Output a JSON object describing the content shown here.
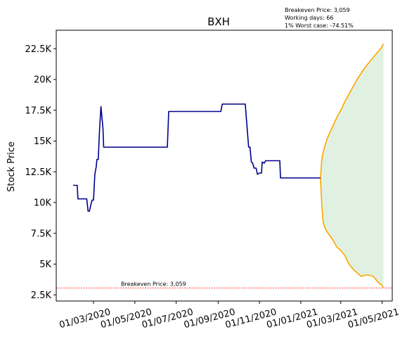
{
  "chart_data": {
    "type": "line",
    "title": "BXH",
    "ylabel": "Stock Price",
    "xlabel": "",
    "annotation_lines": [
      "Breakeven Price: 3,059",
      "Working days: 66",
      "1% Worst case: -74.51%"
    ],
    "ylim": [
      2000,
      24000
    ],
    "y_ticks": [
      2500,
      5000,
      7500,
      10000,
      12500,
      15000,
      17500,
      20000,
      22500
    ],
    "y_tick_labels": [
      "2.5K",
      "5K",
      "7.5K",
      "10K",
      "12.5K",
      "15K",
      "17.5K",
      "20K",
      "22.5K"
    ],
    "xlim": [
      "2020-01-06",
      "2021-05-16"
    ],
    "x_ticks": [
      "2020-03-01",
      "2020-05-01",
      "2020-07-01",
      "2020-09-01",
      "2020-11-01",
      "2021-01-01",
      "2021-03-01",
      "2021-05-01"
    ],
    "x_tick_labels": [
      "01/03/2020",
      "01/05/2020",
      "01/07/2020",
      "01/09/2020",
      "01/11/2020",
      "01/01/2021",
      "01/03/2021",
      "01/05/2021"
    ],
    "breakeven": {
      "value": 3059,
      "label": "Breakeven Price: 3,059",
      "color": "#ff0000"
    },
    "band": {
      "color": "#c8e6c9"
    },
    "series": [
      {
        "role": "history",
        "color": "#00008b",
        "points": [
          [
            "2020-01-31",
            11400
          ],
          [
            "2020-02-06",
            11400
          ],
          [
            "2020-02-07",
            10300
          ],
          [
            "2020-02-20",
            10300
          ],
          [
            "2020-02-22",
            9300
          ],
          [
            "2020-02-24",
            9300
          ],
          [
            "2020-02-26",
            9800
          ],
          [
            "2020-02-28",
            10200
          ],
          [
            "2020-03-01",
            10200
          ],
          [
            "2020-03-03",
            12300
          ],
          [
            "2020-03-05",
            12900
          ],
          [
            "2020-03-06",
            13500
          ],
          [
            "2020-03-08",
            13500
          ],
          [
            "2020-03-10",
            16000
          ],
          [
            "2020-03-12",
            17800
          ],
          [
            "2020-03-14",
            16600
          ],
          [
            "2020-03-15",
            16000
          ],
          [
            "2020-03-16",
            14500
          ],
          [
            "2020-06-18",
            14500
          ],
          [
            "2020-06-20",
            17400
          ],
          [
            "2020-09-05",
            17400
          ],
          [
            "2020-09-07",
            18000
          ],
          [
            "2020-10-11",
            18000
          ],
          [
            "2020-10-16",
            14500
          ],
          [
            "2020-10-18",
            14500
          ],
          [
            "2020-10-20",
            13300
          ],
          [
            "2020-10-22",
            13200
          ],
          [
            "2020-10-24",
            12800
          ],
          [
            "2020-10-27",
            12800
          ],
          [
            "2020-10-29",
            12300
          ],
          [
            "2020-11-01",
            12400
          ],
          [
            "2020-11-04",
            12400
          ],
          [
            "2020-11-05",
            13300
          ],
          [
            "2020-11-08",
            13200
          ],
          [
            "2020-11-10",
            13400
          ],
          [
            "2020-12-01",
            13400
          ],
          [
            "2020-12-02",
            12000
          ],
          [
            "2021-01-30",
            12000
          ]
        ]
      },
      {
        "role": "upper-bound",
        "color": "#ffa500",
        "points": [
          [
            "2021-01-30",
            12000
          ],
          [
            "2021-02-01",
            13500
          ],
          [
            "2021-02-03",
            14100
          ],
          [
            "2021-02-06",
            14700
          ],
          [
            "2021-02-09",
            15200
          ],
          [
            "2021-02-13",
            15700
          ],
          [
            "2021-02-18",
            16300
          ],
          [
            "2021-02-23",
            16900
          ],
          [
            "2021-03-01",
            17500
          ],
          [
            "2021-03-07",
            18200
          ],
          [
            "2021-03-13",
            18800
          ],
          [
            "2021-03-19",
            19400
          ],
          [
            "2021-03-25",
            20000
          ],
          [
            "2021-03-31",
            20500
          ],
          [
            "2021-04-06",
            21000
          ],
          [
            "2021-04-12",
            21400
          ],
          [
            "2021-04-18",
            21800
          ],
          [
            "2021-04-24",
            22200
          ],
          [
            "2021-04-30",
            22600
          ],
          [
            "2021-05-03",
            22900
          ]
        ]
      },
      {
        "role": "lower-bound",
        "color": "#ffa500",
        "points": [
          [
            "2021-01-30",
            12000
          ],
          [
            "2021-02-01",
            9800
          ],
          [
            "2021-02-03",
            8400
          ],
          [
            "2021-02-06",
            7900
          ],
          [
            "2021-02-09",
            7600
          ],
          [
            "2021-02-13",
            7300
          ],
          [
            "2021-02-18",
            6900
          ],
          [
            "2021-02-23",
            6400
          ],
          [
            "2021-03-01",
            6100
          ],
          [
            "2021-03-07",
            5700
          ],
          [
            "2021-03-13",
            5000
          ],
          [
            "2021-03-19",
            4600
          ],
          [
            "2021-03-25",
            4300
          ],
          [
            "2021-03-31",
            4000
          ],
          [
            "2021-04-06",
            4100
          ],
          [
            "2021-04-12",
            4100
          ],
          [
            "2021-04-18",
            4000
          ],
          [
            "2021-04-24",
            3600
          ],
          [
            "2021-04-30",
            3300
          ],
          [
            "2021-05-03",
            3100
          ]
        ]
      }
    ]
  }
}
